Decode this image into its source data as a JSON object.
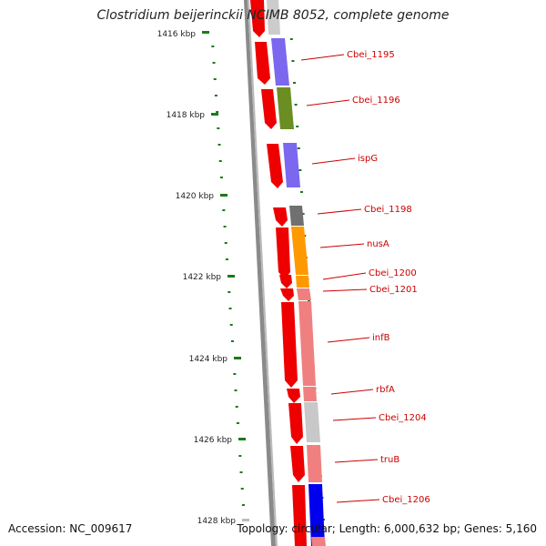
{
  "title": "Clostridium beijerinckii NCIMB 8052, complete genome",
  "accession": "Accession: NC_009617",
  "topology": "Topology: circular; Length: 6,000,632 bp; Genes: 5,160",
  "ruler": [
    "1416 kbp",
    "1418 kbp",
    "1420 kbp",
    "1422 kbp",
    "1424 kbp",
    "1426 kbp",
    "1428 kbp"
  ],
  "gene_labels": [
    "Cbei_1195",
    "Cbei_1196",
    "ispG",
    "Cbei_1198",
    "nusA",
    "Cbei_1200",
    "Cbei_1201",
    "infB",
    "rbfA",
    "Cbei_1204",
    "truB",
    "Cbei_1206"
  ],
  "colors": {
    "cds": "#ee0000",
    "label": "#cc0000",
    "ruler_tick": "#1a7a1a",
    "backbone": "#888888"
  },
  "feature_colors": [
    "#cccccc",
    "#7b68ee",
    "#6b8e23",
    "#7b68ee",
    "#707070",
    "#ff9900",
    "#ff9900",
    "#f08080",
    "#f08080",
    "#f08080",
    "#c8c8c8",
    "#f08080",
    "#0000ee"
  ]
}
